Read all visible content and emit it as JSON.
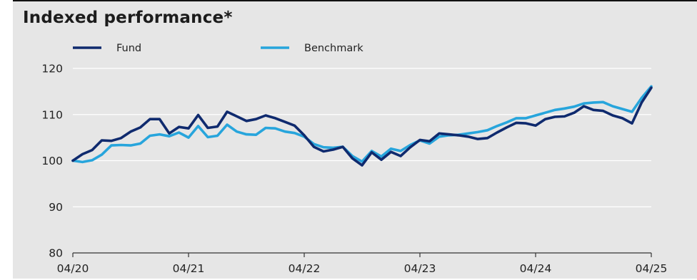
{
  "chart_data": {
    "type": "line",
    "title": "Indexed performance*",
    "xlabel": "",
    "ylabel": "",
    "ylim": [
      80,
      120
    ],
    "yticks": [
      80,
      90,
      100,
      110,
      120
    ],
    "xlim": [
      0,
      60
    ],
    "xticks": [
      {
        "x": 0,
        "label": "04/20"
      },
      {
        "x": 12,
        "label": "04/21"
      },
      {
        "x": 24,
        "label": "04/22"
      },
      {
        "x": 36,
        "label": "04/23"
      },
      {
        "x": 48,
        "label": "04/24"
      },
      {
        "x": 60,
        "label": "04/25"
      }
    ],
    "grid": true,
    "legend": "top-left",
    "series": [
      {
        "name": "Fund",
        "color": "#0f2a6e",
        "values": [
          100,
          101.4,
          102.3,
          104.4,
          104.3,
          104.9,
          106.3,
          107.2,
          109,
          109,
          105.9,
          107.3,
          107.0,
          109.9,
          107.1,
          107.4,
          110.6,
          109.6,
          108.6,
          109.0,
          109.8,
          109.2,
          108.4,
          107.6,
          105.5,
          103.0,
          102.0,
          102.4,
          103.0,
          100.5,
          99.0,
          101.8,
          100.2,
          101.9,
          101.0,
          102.9,
          104.5,
          104.2,
          105.9,
          105.7,
          105.5,
          105.2,
          104.7,
          104.9,
          106.1,
          107.2,
          108.2,
          108.1,
          107.6,
          109.0,
          109.5,
          109.6,
          110.4,
          111.8,
          111.0,
          110.8,
          109.8,
          109.2,
          108.1,
          112.6,
          115.8
        ]
      },
      {
        "name": "Benchmark",
        "color": "#27a5dc",
        "values": [
          100,
          99.7,
          100.1,
          101.3,
          103.3,
          103.4,
          103.3,
          103.7,
          105.4,
          105.7,
          105.3,
          106.1,
          105.0,
          107.5,
          105.1,
          105.4,
          107.8,
          106.3,
          105.7,
          105.6,
          107.1,
          107.0,
          106.3,
          106.0,
          105.2,
          103.6,
          102.9,
          102.8,
          103.0,
          101.0,
          99.8,
          102.1,
          100.9,
          102.6,
          102.1,
          103.4,
          104.4,
          103.7,
          105.2,
          105.5,
          105.6,
          105.9,
          106.2,
          106.6,
          107.5,
          108.3,
          109.2,
          109.2,
          109.8,
          110.4,
          111.0,
          111.3,
          111.7,
          112.4,
          112.6,
          112.7,
          111.8,
          111.2,
          110.6,
          113.6,
          116.1
        ]
      }
    ]
  }
}
